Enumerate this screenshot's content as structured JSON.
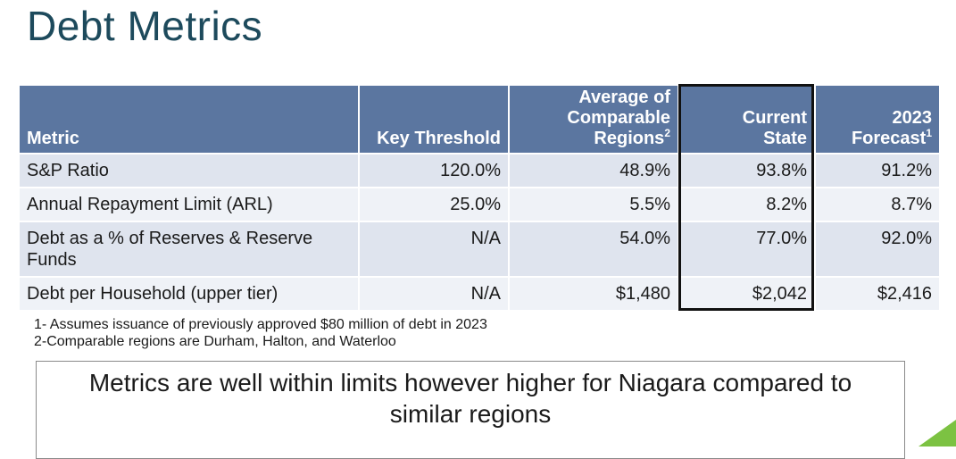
{
  "page": {
    "title": "Debt Metrics"
  },
  "table": {
    "headers": [
      {
        "lines": [
          "Metric"
        ],
        "sup": ""
      },
      {
        "lines": [
          "Key Threshold"
        ],
        "sup": ""
      },
      {
        "lines": [
          "Average of",
          "Comparable",
          "Regions"
        ],
        "sup": "2"
      },
      {
        "lines": [
          "Current",
          "State"
        ],
        "sup": ""
      },
      {
        "lines": [
          "2023",
          "Forecast"
        ],
        "sup": "1"
      }
    ],
    "rows": [
      [
        "S&P Ratio",
        "120.0%",
        "48.9%",
        "93.8%",
        "91.2%"
      ],
      [
        "Annual Repayment Limit (ARL)",
        "25.0%",
        "5.5%",
        "8.2%",
        "8.7%"
      ],
      [
        "Debt as a % of Reserves & Reserve Funds",
        "N/A",
        "54.0%",
        "77.0%",
        "92.0%"
      ],
      [
        "Debt per Household (upper tier)",
        "N/A",
        "$1,480",
        "$2,042",
        "$2,416"
      ]
    ]
  },
  "footnotes": [
    "1- Assumes issuance of previously approved $80 million of debt in 2023",
    "2-Comparable regions are Durham, Halton, and Waterloo"
  ],
  "callout": {
    "line1": "Metrics are well within limits however higher for Niagara compared to",
    "line2": "similar regions"
  },
  "colors": {
    "title": "#1d4a5c",
    "header": "#5b76a0",
    "row_odd": "#dfe4ee",
    "row_even": "#eff2f7",
    "accent": "#7cc242"
  }
}
